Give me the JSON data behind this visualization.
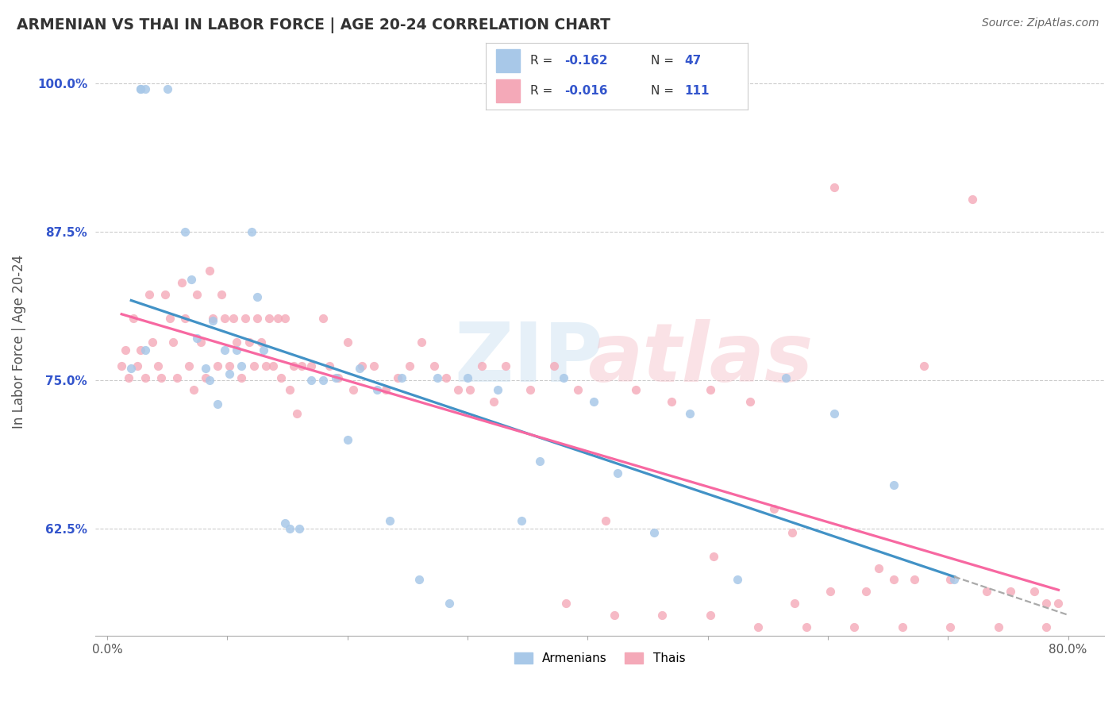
{
  "title": "ARMENIAN VS THAI IN LABOR FORCE | AGE 20-24 CORRELATION CHART",
  "source": "Source: ZipAtlas.com",
  "ylabel": "In Labor Force | Age 20-24",
  "xlim": [
    -0.01,
    0.83
  ],
  "ylim": [
    0.535,
    1.03
  ],
  "xticks": [
    0.0,
    0.1,
    0.2,
    0.3,
    0.4,
    0.5,
    0.6,
    0.7,
    0.8
  ],
  "xtick_labels": [
    "0.0%",
    "",
    "",
    "",
    "",
    "",
    "",
    "",
    "80.0%"
  ],
  "yticks": [
    0.625,
    0.75,
    0.875,
    1.0
  ],
  "ytick_labels": [
    "62.5%",
    "75.0%",
    "87.5%",
    "100.0%"
  ],
  "armenian_color": "#a8c8e8",
  "thai_color": "#f4a9b8",
  "armenian_line_color": "#4292c6",
  "thai_line_color": "#f768a1",
  "background_color": "#ffffff",
  "grid_color": "#cccccc",
  "arm_x": [
    0.02,
    0.028,
    0.032,
    0.065,
    0.07,
    0.075,
    0.082,
    0.085,
    0.088,
    0.092,
    0.098,
    0.102,
    0.108,
    0.112,
    0.12,
    0.125,
    0.148,
    0.152,
    0.16,
    0.17,
    0.18,
    0.19,
    0.2,
    0.21,
    0.225,
    0.235,
    0.26,
    0.275,
    0.285,
    0.3,
    0.325,
    0.345,
    0.36,
    0.38,
    0.405,
    0.425,
    0.455,
    0.485,
    0.525,
    0.565,
    0.605,
    0.655,
    0.705,
    0.028,
    0.032,
    0.05,
    0.13,
    0.245
  ],
  "arm_y": [
    0.76,
    0.995,
    0.995,
    0.875,
    0.835,
    0.785,
    0.76,
    0.75,
    0.8,
    0.73,
    0.775,
    0.755,
    0.775,
    0.762,
    0.875,
    0.82,
    0.63,
    0.625,
    0.625,
    0.75,
    0.75,
    0.752,
    0.7,
    0.76,
    0.742,
    0.632,
    0.582,
    0.752,
    0.562,
    0.752,
    0.742,
    0.632,
    0.682,
    0.752,
    0.732,
    0.672,
    0.622,
    0.722,
    0.582,
    0.752,
    0.722,
    0.662,
    0.582,
    0.995,
    0.775,
    0.995,
    0.775,
    0.752
  ],
  "thai_x": [
    0.012,
    0.015,
    0.018,
    0.022,
    0.025,
    0.028,
    0.032,
    0.035,
    0.038,
    0.042,
    0.045,
    0.048,
    0.052,
    0.055,
    0.058,
    0.062,
    0.065,
    0.068,
    0.072,
    0.075,
    0.078,
    0.082,
    0.085,
    0.088,
    0.092,
    0.095,
    0.098,
    0.102,
    0.105,
    0.108,
    0.112,
    0.115,
    0.118,
    0.122,
    0.125,
    0.128,
    0.132,
    0.135,
    0.138,
    0.142,
    0.145,
    0.148,
    0.152,
    0.155,
    0.158,
    0.162,
    0.17,
    0.18,
    0.185,
    0.192,
    0.2,
    0.205,
    0.212,
    0.222,
    0.232,
    0.242,
    0.252,
    0.262,
    0.272,
    0.282,
    0.292,
    0.302,
    0.312,
    0.322,
    0.332,
    0.352,
    0.372,
    0.392,
    0.415,
    0.44,
    0.47,
    0.502,
    0.535,
    0.57,
    0.605,
    0.642,
    0.68,
    0.72,
    0.382,
    0.422,
    0.462,
    0.502,
    0.542,
    0.582,
    0.622,
    0.662,
    0.702,
    0.742,
    0.782,
    0.602,
    0.632,
    0.655,
    0.672,
    0.702,
    0.732,
    0.752,
    0.772,
    0.782,
    0.792,
    0.505,
    0.555,
    0.572
  ],
  "thai_y": [
    0.762,
    0.775,
    0.752,
    0.802,
    0.762,
    0.775,
    0.752,
    0.822,
    0.782,
    0.762,
    0.752,
    0.822,
    0.802,
    0.782,
    0.752,
    0.832,
    0.802,
    0.762,
    0.742,
    0.822,
    0.782,
    0.752,
    0.842,
    0.802,
    0.762,
    0.822,
    0.802,
    0.762,
    0.802,
    0.782,
    0.752,
    0.802,
    0.782,
    0.762,
    0.802,
    0.782,
    0.762,
    0.802,
    0.762,
    0.802,
    0.752,
    0.802,
    0.742,
    0.762,
    0.722,
    0.762,
    0.762,
    0.802,
    0.762,
    0.752,
    0.782,
    0.742,
    0.762,
    0.762,
    0.742,
    0.752,
    0.762,
    0.782,
    0.762,
    0.752,
    0.742,
    0.742,
    0.762,
    0.732,
    0.762,
    0.742,
    0.762,
    0.742,
    0.632,
    0.742,
    0.732,
    0.742,
    0.732,
    0.622,
    0.912,
    0.592,
    0.762,
    0.902,
    0.562,
    0.552,
    0.552,
    0.552,
    0.542,
    0.542,
    0.542,
    0.542,
    0.542,
    0.542,
    0.542,
    0.572,
    0.572,
    0.582,
    0.582,
    0.582,
    0.572,
    0.572,
    0.572,
    0.562,
    0.562,
    0.602,
    0.642,
    0.562
  ]
}
